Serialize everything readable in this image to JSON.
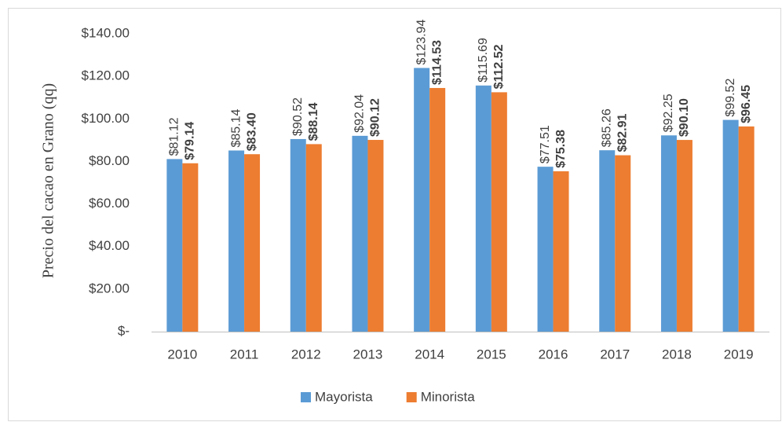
{
  "chart_data": {
    "type": "bar",
    "y_axis_label": "Precio del cacao en  Grano (qq)",
    "categories": [
      "2010",
      "2011",
      "2012",
      "2013",
      "2014",
      "2015",
      "2016",
      "2017",
      "2018",
      "2019"
    ],
    "series": [
      {
        "name": "Mayorista",
        "color": "#5b9bd5",
        "values": [
          81.12,
          85.14,
          90.52,
          92.04,
          123.94,
          115.69,
          77.51,
          85.26,
          92.25,
          99.52
        ],
        "value_labels": [
          "$81.12",
          "$85.14",
          "$90.52",
          "$92.04",
          "$123.94",
          "$115.69",
          "$77.51",
          "$85.26",
          "$92.25",
          "$99.52"
        ]
      },
      {
        "name": "Minorista",
        "color": "#ed7d31",
        "values": [
          79.14,
          83.4,
          88.14,
          90.12,
          114.53,
          112.52,
          75.38,
          82.91,
          90.1,
          96.45
        ],
        "value_labels": [
          "$79.14",
          "$83.40",
          "$88.14",
          "$90.12",
          "$114.53",
          "$112.52",
          "$75.38",
          "$82.91",
          "$90.10",
          "$96.45"
        ]
      }
    ],
    "ylim": [
      0,
      140
    ],
    "yticks": [
      {
        "value": 0,
        "label": "$-"
      },
      {
        "value": 20,
        "label": "$20.00"
      },
      {
        "value": 40,
        "label": "$40.00"
      },
      {
        "value": 60,
        "label": "$60.00"
      },
      {
        "value": 80,
        "label": "$80.00"
      },
      {
        "value": 100,
        "label": "$100.00"
      },
      {
        "value": 120,
        "label": "$120.00"
      },
      {
        "value": 140,
        "label": "$140.00"
      }
    ],
    "grid": false
  }
}
